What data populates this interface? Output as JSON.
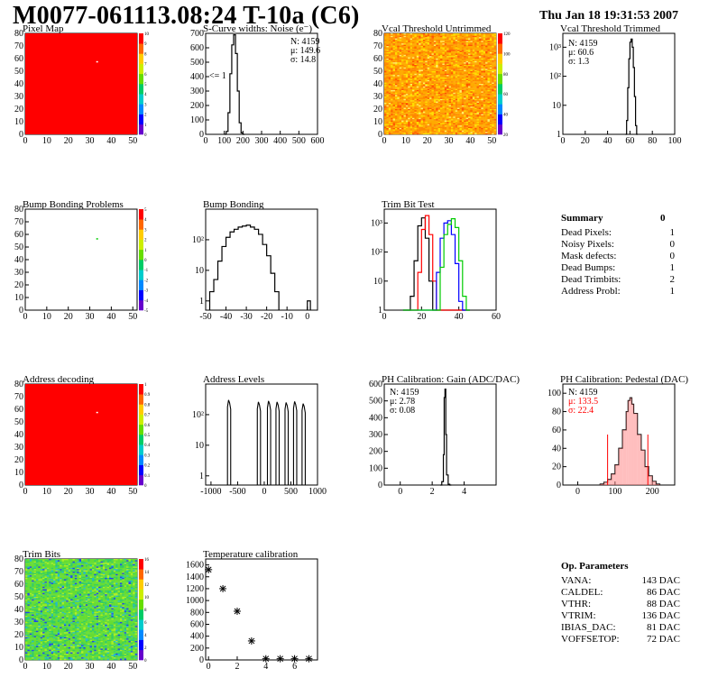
{
  "header": {
    "title": "M0077-061113.08:24 T-10a (C6)",
    "date": "Thu Jan 18 19:31:53 2007"
  },
  "colors": {
    "line": "#000000",
    "red": "#ff0000",
    "green": "#00cc00",
    "blue": "#0000ff",
    "map_red": "#ff0000"
  },
  "chart_data": [
    {
      "id": "pixel_map",
      "type": "heatmap",
      "title": "Pixel Map",
      "xlim": [
        0,
        52
      ],
      "ylim": [
        0,
        80
      ],
      "xticks": [
        "0",
        "10",
        "20",
        "30",
        "40",
        "50"
      ],
      "yticks": [
        "0",
        "10",
        "20",
        "30",
        "40",
        "50",
        "60",
        "70",
        "80"
      ],
      "zticks": [
        "0",
        "1",
        "2",
        "3",
        "4",
        "5",
        "6",
        "7",
        "8",
        "9",
        "10"
      ],
      "fill": "uniform red (saturated)",
      "special_pixels": [
        {
          "x": 33,
          "y": 58
        }
      ]
    },
    {
      "id": "scurve_noise",
      "type": "line",
      "title": "S-Curve widths: Noise (e⁻)",
      "xlim": [
        0,
        600
      ],
      "ylim": [
        0,
        700
      ],
      "xticks": [
        "0",
        "100",
        "200",
        "300",
        "400",
        "500",
        "600"
      ],
      "yticks": [
        "0",
        "100",
        "200",
        "300",
        "400",
        "500",
        "600",
        "700"
      ],
      "stats": [
        "N: 4159",
        "μ: 149.6",
        "σ: 14.8"
      ],
      "annotation": "<= 1",
      "x": [
        100,
        110,
        120,
        130,
        140,
        150,
        160,
        170,
        180,
        190,
        200
      ],
      "values": [
        0,
        20,
        150,
        420,
        620,
        690,
        560,
        300,
        80,
        10,
        0
      ]
    },
    {
      "id": "vcal_untrimmed",
      "type": "heatmap",
      "title": "Vcal Threshold Untrimmed",
      "xlim": [
        0,
        52
      ],
      "ylim": [
        0,
        80
      ],
      "xticks": [
        "0",
        "10",
        "20",
        "30",
        "40",
        "50"
      ],
      "yticks": [
        "0",
        "10",
        "20",
        "30",
        "40",
        "50",
        "60",
        "70",
        "80"
      ],
      "zticks": [
        "20",
        "40",
        "60",
        "80",
        "100",
        "120"
      ],
      "fill": "noisy orange / yellow"
    },
    {
      "id": "vcal_trimmed",
      "type": "line",
      "title": "Vcal Threshold Trimmed",
      "log_y": true,
      "xlim": [
        0,
        100
      ],
      "ylim": [
        1,
        3000
      ],
      "xticks": [
        "0",
        "20",
        "40",
        "60",
        "80",
        "100"
      ],
      "yticks": [
        "1",
        "10",
        "10²",
        "10³"
      ],
      "stats": [
        "N: 4159",
        "μ: 60.6",
        "σ:  1.3"
      ],
      "x": [
        56,
        57,
        58,
        59,
        60,
        61,
        62,
        63,
        64,
        65,
        66
      ],
      "values": [
        1,
        3,
        40,
        400,
        1500,
        1900,
        1000,
        200,
        20,
        2,
        1
      ]
    },
    {
      "id": "bump_problems",
      "type": "heatmap",
      "title": "Bump Bonding Problems",
      "xlim": [
        0,
        52
      ],
      "ylim": [
        0,
        80
      ],
      "xticks": [
        "0",
        "10",
        "20",
        "30",
        "40",
        "50"
      ],
      "yticks": [
        "0",
        "10",
        "20",
        "30",
        "40",
        "50",
        "60",
        "70",
        "80"
      ],
      "zticks": [
        "-5",
        "-4",
        "-3",
        "-2",
        "-1",
        "0",
        "1",
        "2",
        "3",
        "4",
        "5"
      ],
      "fill": "white",
      "special_pixels": [
        {
          "x": 33,
          "y": 57
        }
      ]
    },
    {
      "id": "bump_bonding",
      "type": "line",
      "title": "Bump Bonding",
      "log_y": true,
      "xlim": [
        -50,
        5
      ],
      "ylim": [
        0.5,
        1000
      ],
      "xticks": [
        "-50",
        "-40",
        "-30",
        "-20",
        "-10",
        "0"
      ],
      "yticks": [
        "1",
        "10",
        "10²"
      ],
      "x": [
        -48,
        -46,
        -44,
        -42,
        -40,
        -38,
        -36,
        -34,
        -32,
        -30,
        -28,
        -26,
        -24,
        -22,
        -20,
        -18,
        -16,
        0
      ],
      "values": [
        2,
        5,
        20,
        60,
        120,
        180,
        220,
        260,
        280,
        300,
        260,
        220,
        150,
        70,
        30,
        8,
        2,
        1
      ]
    },
    {
      "id": "trim_bit_test",
      "type": "line",
      "title": "Trim Bit Test",
      "log_y": true,
      "xlim": [
        0,
        60
      ],
      "ylim": [
        1,
        3000
      ],
      "xticks": [
        "0",
        "20",
        "40",
        "60"
      ],
      "yticks": [
        "1",
        "10",
        "10²",
        "10³"
      ],
      "x": [
        10,
        12,
        14,
        16,
        18,
        20,
        22,
        24,
        26,
        28,
        30,
        32,
        34,
        36,
        38,
        40,
        42,
        44
      ],
      "series": [
        {
          "color": "#000000",
          "values": [
            1,
            1,
            3,
            50,
            800,
            1500,
            300,
            10,
            1,
            1,
            1,
            1,
            1,
            1,
            1,
            1,
            1,
            1
          ]
        },
        {
          "color": "#ff0000",
          "values": [
            1,
            1,
            1,
            1,
            20,
            600,
            1800,
            400,
            10,
            1,
            1,
            1,
            1,
            1,
            1,
            1,
            1,
            1
          ]
        },
        {
          "color": "#0000ff",
          "values": [
            1,
            1,
            1,
            1,
            1,
            1,
            1,
            1,
            1,
            20,
            300,
            1000,
            1200,
            400,
            40,
            2,
            1,
            1
          ]
        },
        {
          "color": "#00cc00",
          "values": [
            1,
            1,
            1,
            1,
            1,
            1,
            1,
            1,
            1,
            1,
            30,
            400,
            900,
            1400,
            700,
            50,
            3,
            1
          ]
        }
      ]
    },
    {
      "id": "address_decoding",
      "type": "heatmap",
      "title": "Address decoding",
      "xlim": [
        0,
        52
      ],
      "ylim": [
        0,
        80
      ],
      "xticks": [
        "0",
        "10",
        "20",
        "30",
        "40",
        "50"
      ],
      "yticks": [
        "0",
        "10",
        "20",
        "30",
        "40",
        "50",
        "60",
        "70",
        "80"
      ],
      "zticks": [
        "0",
        "0.1",
        "0.2",
        "0.3",
        "0.4",
        "0.5",
        "0.6",
        "0.7",
        "0.8",
        "0.9",
        "1"
      ],
      "fill": "uniform red (saturated)",
      "special_pixels": [
        {
          "x": 33,
          "y": 58
        }
      ]
    },
    {
      "id": "address_levels",
      "type": "line",
      "title": "Address Levels",
      "log_y": true,
      "xlim": [
        -1100,
        1000
      ],
      "ylim": [
        0.5,
        1000
      ],
      "xticks": [
        "-1000",
        "-500",
        "0",
        "500",
        "1000"
      ],
      "yticks": [
        "1",
        "10",
        "10²"
      ],
      "peaks_x": [
        -660,
        -100,
        90,
        250,
        420,
        580,
        740
      ],
      "peaks_height": [
        300,
        260,
        280,
        260,
        250,
        270,
        230
      ]
    },
    {
      "id": "ph_gain",
      "type": "line",
      "title": "PH Calibration: Gain (ADC/DAC)",
      "xlim": [
        -1,
        6
      ],
      "ylim": [
        0,
        600
      ],
      "xticks": [
        "0",
        "2",
        "4"
      ],
      "yticks": [
        "0",
        "100",
        "200",
        "300",
        "400",
        "500",
        "600"
      ],
      "stats": [
        "N: 4159",
        "μ: 2.78",
        "σ: 0.08"
      ],
      "x": [
        2.5,
        2.6,
        2.7,
        2.75,
        2.8,
        2.85,
        2.9,
        3.0,
        3.1
      ],
      "values": [
        0,
        20,
        180,
        520,
        570,
        300,
        60,
        5,
        0
      ]
    },
    {
      "id": "ph_pedestal",
      "type": "area",
      "title": "PH Calibration: Pedestal (DAC)",
      "xlim": [
        -40,
        260
      ],
      "ylim": [
        0,
        110
      ],
      "xticks": [
        "0",
        "100",
        "200"
      ],
      "yticks": [
        "0",
        "20",
        "40",
        "60",
        "80",
        "100"
      ],
      "stats": [
        "N: 4159",
        "μ: 133.5",
        "σ: 22.4"
      ],
      "stats_colors": [
        "#000000",
        "#ff0000",
        "#ff0000"
      ],
      "x": [
        60,
        70,
        80,
        90,
        100,
        110,
        120,
        130,
        135,
        140,
        145,
        150,
        160,
        170,
        180,
        190,
        200,
        210
      ],
      "values": [
        1,
        3,
        6,
        12,
        22,
        40,
        60,
        80,
        92,
        95,
        88,
        78,
        55,
        38,
        20,
        10,
        4,
        1
      ],
      "cut_lines": [
        80,
        188
      ]
    },
    {
      "id": "trim_bits",
      "type": "heatmap",
      "title": "Trim Bits",
      "xlim": [
        0,
        52
      ],
      "ylim": [
        0,
        80
      ],
      "xticks": [
        "0",
        "10",
        "20",
        "30",
        "40",
        "50"
      ],
      "yticks": [
        "0",
        "10",
        "20",
        "30",
        "40",
        "50",
        "60",
        "70",
        "80"
      ],
      "zticks": [
        "0",
        "2",
        "4",
        "6",
        "8",
        "10",
        "12",
        "14",
        "16"
      ],
      "fill": "noisy green"
    },
    {
      "id": "temperature_calibration",
      "type": "scatter",
      "title": "Temperature calibration",
      "xlim": [
        -0.2,
        7.6
      ],
      "ylim": [
        0,
        1700
      ],
      "xticks": [
        "0",
        "2",
        "4",
        "6"
      ],
      "yticks": [
        "0",
        "200",
        "400",
        "600",
        "800",
        "1000",
        "1200",
        "1400",
        "1600"
      ],
      "x": [
        0,
        1,
        2,
        3,
        4,
        5,
        6,
        7
      ],
      "values": [
        1520,
        1200,
        820,
        320,
        20,
        20,
        20,
        20
      ]
    }
  ],
  "summary": {
    "title": "Summary",
    "total": "0",
    "rows": [
      {
        "label": "Dead Pixels:",
        "value": "1"
      },
      {
        "label": "Noisy Pixels:",
        "value": "0"
      },
      {
        "label": "Mask defects:",
        "value": "0"
      },
      {
        "label": "Dead Bumps:",
        "value": "1"
      },
      {
        "label": "Dead Trimbits:",
        "value": "2"
      },
      {
        "label": "Address Probl:",
        "value": "1"
      }
    ]
  },
  "op_parameters": {
    "title": "Op. Parameters",
    "rows": [
      {
        "label": "VANA:",
        "value": "143 DAC"
      },
      {
        "label": "CALDEL:",
        "value": "86 DAC"
      },
      {
        "label": "VTHR:",
        "value": "88 DAC"
      },
      {
        "label": "VTRIM:",
        "value": "136 DAC"
      },
      {
        "label": "IBIAS_DAC:",
        "value": "81 DAC"
      },
      {
        "label": "VOFFSETOP:",
        "value": "72 DAC"
      }
    ]
  }
}
